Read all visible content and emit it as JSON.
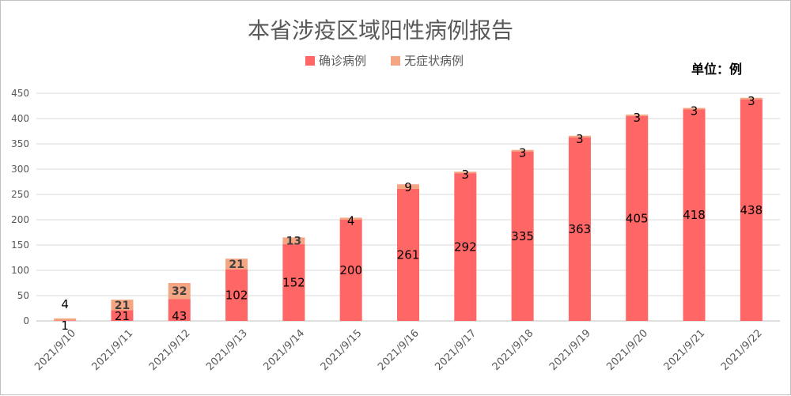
{
  "chart_data": {
    "type": "bar",
    "stacked": true,
    "title": "本省涉疫区域阳性病例报告",
    "unit": "单位：例",
    "categories": [
      "2021/9/10",
      "2021/9/11",
      "2021/9/12",
      "2021/9/13",
      "2021/9/14",
      "2021/9/15",
      "2021/9/16",
      "2021/9/17",
      "2021/9/18",
      "2021/9/19",
      "2021/9/20",
      "2021/9/21",
      "2021/9/22"
    ],
    "series": [
      {
        "name": "确诊病例",
        "color": "#ff6666",
        "values": [
          1,
          21,
          43,
          102,
          152,
          200,
          261,
          292,
          335,
          363,
          405,
          418,
          438
        ]
      },
      {
        "name": "无症状病例",
        "color": "#f4a582",
        "values": [
          4,
          21,
          32,
          21,
          13,
          4,
          9,
          3,
          3,
          3,
          3,
          3,
          3
        ]
      }
    ],
    "ylim": [
      0,
      450
    ],
    "yticks": [
      0,
      50,
      100,
      150,
      200,
      250,
      300,
      350,
      400,
      450
    ],
    "grid": true,
    "legend_position": "top"
  }
}
